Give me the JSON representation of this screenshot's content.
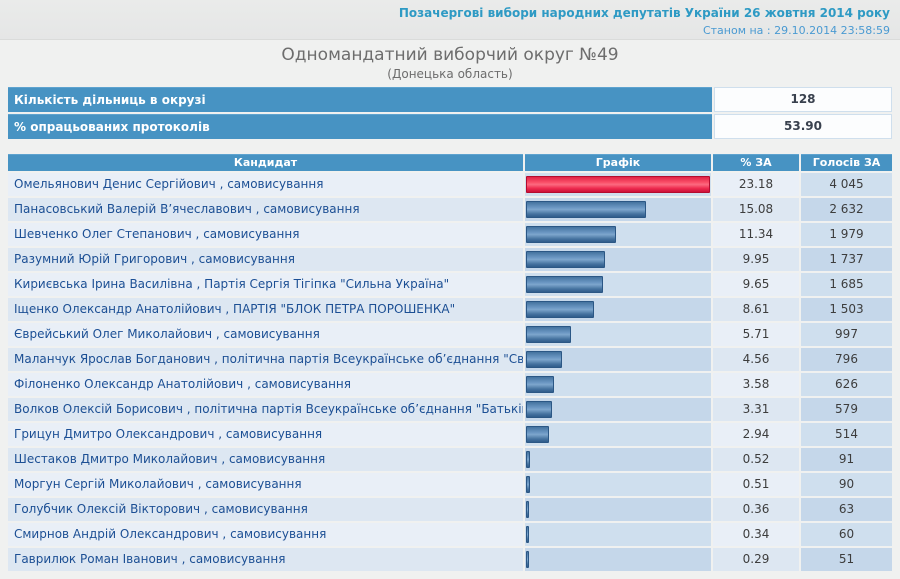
{
  "header": {
    "line1": "Позачергові вибори народних депутатів України 26 жовтня 2014 року",
    "line2": "Станом на : 29.10.2014 23:58:59"
  },
  "title": {
    "main": "Одномандатний виборчий округ №49",
    "sub": "(Донецька область)"
  },
  "summary": [
    {
      "label": "Кількість дільниць в окрузі",
      "value": "128"
    },
    {
      "label": "% опрацьованих протоколів",
      "value": "53.90"
    }
  ],
  "table": {
    "headers": {
      "candidate": "Кандидат",
      "graph": "Графік",
      "percent": "% ЗА",
      "votes": "Голосів ЗА"
    },
    "separator": " , ",
    "rows": [
      {
        "name": "Омельянович Денис Сергійович",
        "party": "самовисування",
        "percent": "23.18",
        "votes": "4 045",
        "bar_pct": 100,
        "bar_color": "red"
      },
      {
        "name": "Панасовський Валерій В’ячеславович",
        "party": "самовисування",
        "percent": "15.08",
        "votes": "2 632",
        "bar_pct": 65.1,
        "bar_color": "blue"
      },
      {
        "name": "Шевченко Олег Степанович",
        "party": "самовисування",
        "percent": "11.34",
        "votes": "1 979",
        "bar_pct": 48.9,
        "bar_color": "blue"
      },
      {
        "name": "Разумний Юрій Григорович",
        "party": "самовисування",
        "percent": "9.95",
        "votes": "1 737",
        "bar_pct": 42.9,
        "bar_color": "blue"
      },
      {
        "name": "Кириєвська Ірина Василівна",
        "party": "Партія Сергія Тігіпка \"Сильна Україна\"",
        "percent": "9.65",
        "votes": "1 685",
        "bar_pct": 41.6,
        "bar_color": "blue"
      },
      {
        "name": "Іщенко Олександр Анатолійович",
        "party": "ПАРТІЯ \"БЛОК ПЕТРА ПОРОШЕНКА\"",
        "percent": "8.61",
        "votes": "1 503",
        "bar_pct": 37.1,
        "bar_color": "blue"
      },
      {
        "name": "Єврейський Олег Миколайович",
        "party": "самовисування",
        "percent": "5.71",
        "votes": "997",
        "bar_pct": 24.6,
        "bar_color": "blue"
      },
      {
        "name": "Маланчук Ярослав Богданович",
        "party": "політична партія Всеукраїнське об’єднання \"Свобода\"",
        "percent": "4.56",
        "votes": "796",
        "bar_pct": 19.7,
        "bar_color": "blue"
      },
      {
        "name": "Філоненко Олександр Анатолійович",
        "party": "самовисування",
        "percent": "3.58",
        "votes": "626",
        "bar_pct": 15.4,
        "bar_color": "blue"
      },
      {
        "name": "Волков Олексій Борисович",
        "party": "політична партія Всеукраїнське об’єднання \"Батьківщина\"",
        "percent": "3.31",
        "votes": "579",
        "bar_pct": 14.3,
        "bar_color": "blue"
      },
      {
        "name": "Грицун Дмитро Олександрович",
        "party": "самовисування",
        "percent": "2.94",
        "votes": "514",
        "bar_pct": 12.7,
        "bar_color": "blue"
      },
      {
        "name": "Шестаков Дмитро Миколайович",
        "party": "самовисування",
        "percent": "0.52",
        "votes": "91",
        "bar_pct": 2.2,
        "bar_color": "blue"
      },
      {
        "name": "Моргун Сергій Миколайович",
        "party": "самовисування",
        "percent": "0.51",
        "votes": "90",
        "bar_pct": 2.2,
        "bar_color": "blue"
      },
      {
        "name": "Голубчик Олексій Вікторович",
        "party": "самовисування",
        "percent": "0.36",
        "votes": "63",
        "bar_pct": 1.6,
        "bar_color": "blue"
      },
      {
        "name": "Смирнов Андрій Олександрович",
        "party": "самовисування",
        "percent": "0.34",
        "votes": "60",
        "bar_pct": 1.5,
        "bar_color": "blue"
      },
      {
        "name": "Гаврилюк Роман Іванович",
        "party": "самовисування",
        "percent": "0.29",
        "votes": "51",
        "bar_pct": 1.3,
        "bar_color": "blue"
      }
    ]
  },
  "colors": {
    "accent_blue": "#4793c3",
    "bar_blue": "#45729f",
    "bar_red": "#ee2c50",
    "candidate_link": "#1c4f94",
    "header_teal": "#2e9ac4",
    "timestamp_blue": "#4a9ad2"
  }
}
